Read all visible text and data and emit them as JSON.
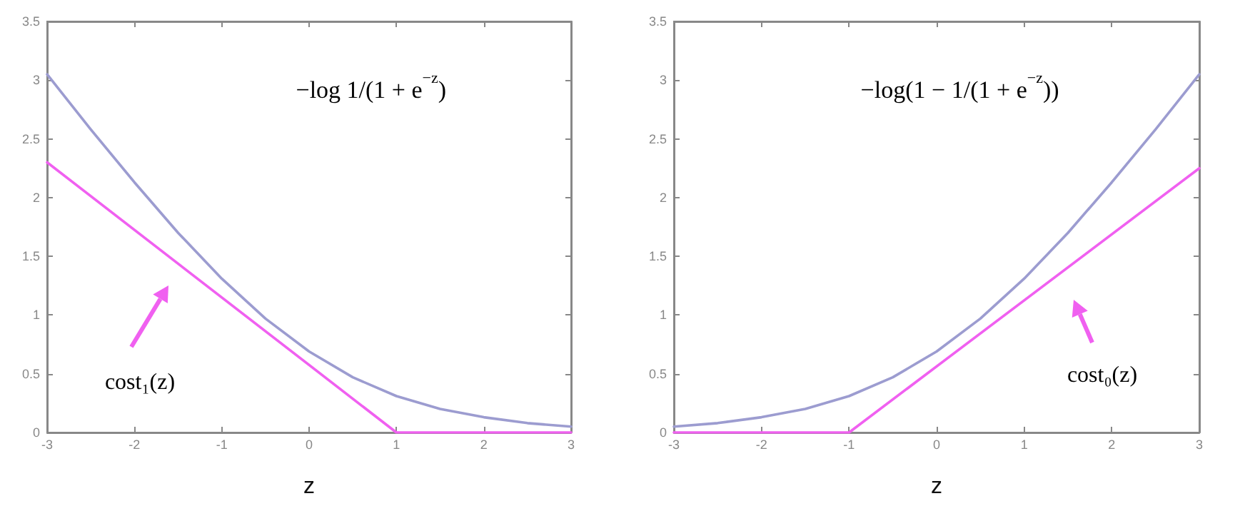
{
  "chart_data": [
    {
      "type": "line",
      "xlabel": "z",
      "x": [
        -3,
        -2.5,
        -2,
        -1.5,
        -1,
        -0.5,
        0,
        0.5,
        1,
        1.5,
        2,
        2.5,
        3
      ],
      "series": [
        {
          "color": "#9c9cd0",
          "values": [
            3.05,
            2.58,
            2.13,
            1.7,
            1.31,
            0.97,
            0.69,
            0.47,
            0.31,
            0.2,
            0.13,
            0.08,
            0.05
          ]
        },
        {
          "color": "#f060f0",
          "x": [
            -3,
            1,
            3
          ],
          "values": [
            2.3,
            0,
            0
          ]
        }
      ],
      "xlim": [
        -3,
        3
      ],
      "xticks": [
        -3,
        -2,
        -1,
        0,
        1,
        2,
        3
      ],
      "ylim": [
        0,
        3.5
      ],
      "yticks": [
        0,
        0.5,
        1,
        1.5,
        2,
        2.5,
        3,
        3.5
      ],
      "grid": false,
      "marker": "none",
      "line_style": "solid",
      "annotations": [
        "−log 1/(1 + e$^{−z}$)",
        "cost₁(z)"
      ]
    },
    {
      "type": "line",
      "xlabel": "z",
      "x": [
        -3,
        -2.5,
        -2,
        -1.5,
        -1,
        -0.5,
        0,
        0.5,
        1,
        1.5,
        2,
        2.5,
        3
      ],
      "series": [
        {
          "color": "#9c9cd0",
          "values": [
            0.05,
            0.08,
            0.13,
            0.2,
            0.31,
            0.47,
            0.69,
            0.97,
            1.31,
            1.7,
            2.13,
            2.58,
            3.05
          ]
        },
        {
          "color": "#f060f0",
          "x": [
            -3,
            -1,
            3
          ],
          "values": [
            0,
            0,
            2.25
          ]
        }
      ],
      "xlim": [
        -3,
        3
      ],
      "xticks": [
        -3,
        -2,
        -1,
        0,
        1,
        2,
        3
      ],
      "ylim": [
        0,
        3.5
      ],
      "yticks": [
        0,
        0.5,
        1,
        1.5,
        2,
        2.5,
        3,
        3.5
      ],
      "grid": false,
      "marker": "none",
      "line_style": "solid",
      "annotations": [
        "−log(1 − 1/(1 + e$^{−z}$))",
        "cost₀(z)"
      ]
    }
  ]
}
